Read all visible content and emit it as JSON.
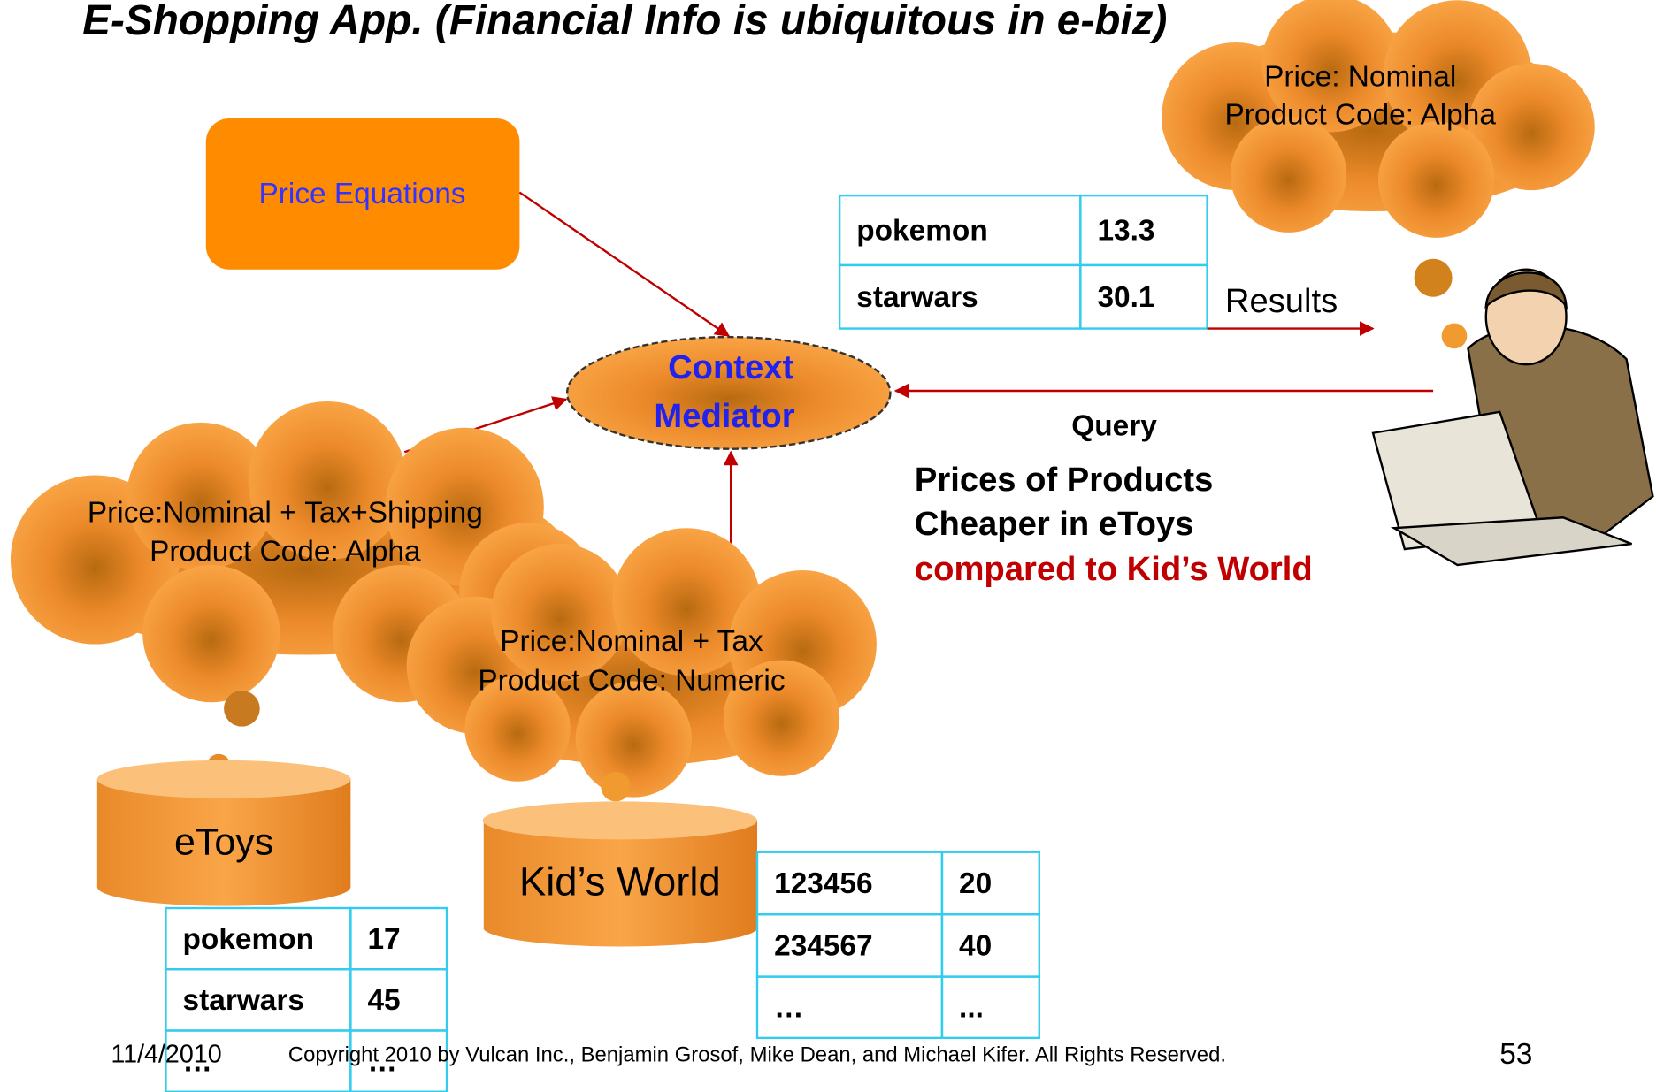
{
  "title": "E-Shopping App. (Financial Info is ubiquitous in e-biz)",
  "price_equations": "Price Equations",
  "mediator": [
    "Context",
    "Mediator"
  ],
  "user_context": [
    "Price: Nominal",
    "Product Code: Alpha"
  ],
  "etoys_context": [
    "Price:Nominal + Tax+Shipping",
    "Product Code: Alpha"
  ],
  "kidsworld_context": [
    "Price:Nominal + Tax",
    "Product Code: Numeric"
  ],
  "results_table": {
    "rows": [
      [
        "pokemon",
        "13.3"
      ],
      [
        "starwars",
        "30.1"
      ]
    ]
  },
  "results_label": "Results",
  "query_label": "Query",
  "query_text": [
    "Prices of Products",
    "Cheaper in eToys",
    "compared to Kid’s World"
  ],
  "etoys": "eToys",
  "etoys_table": {
    "rows": [
      [
        "pokemon",
        "17"
      ],
      [
        "starwars",
        "45"
      ],
      [
        "…",
        "…"
      ]
    ]
  },
  "kidsworld": "Kid’s World",
  "kidsworld_table": {
    "rows": [
      [
        "123456",
        "20"
      ],
      [
        "234567",
        "40"
      ],
      [
        "…",
        "..."
      ]
    ]
  },
  "footer": {
    "date": "11/4/2010",
    "copyright": "Copyright 2010 by Vulcan Inc., Benjamin Grosof, Mike Dean, and Michael Kifer.  All Rights Reserved.",
    "page": "53"
  }
}
